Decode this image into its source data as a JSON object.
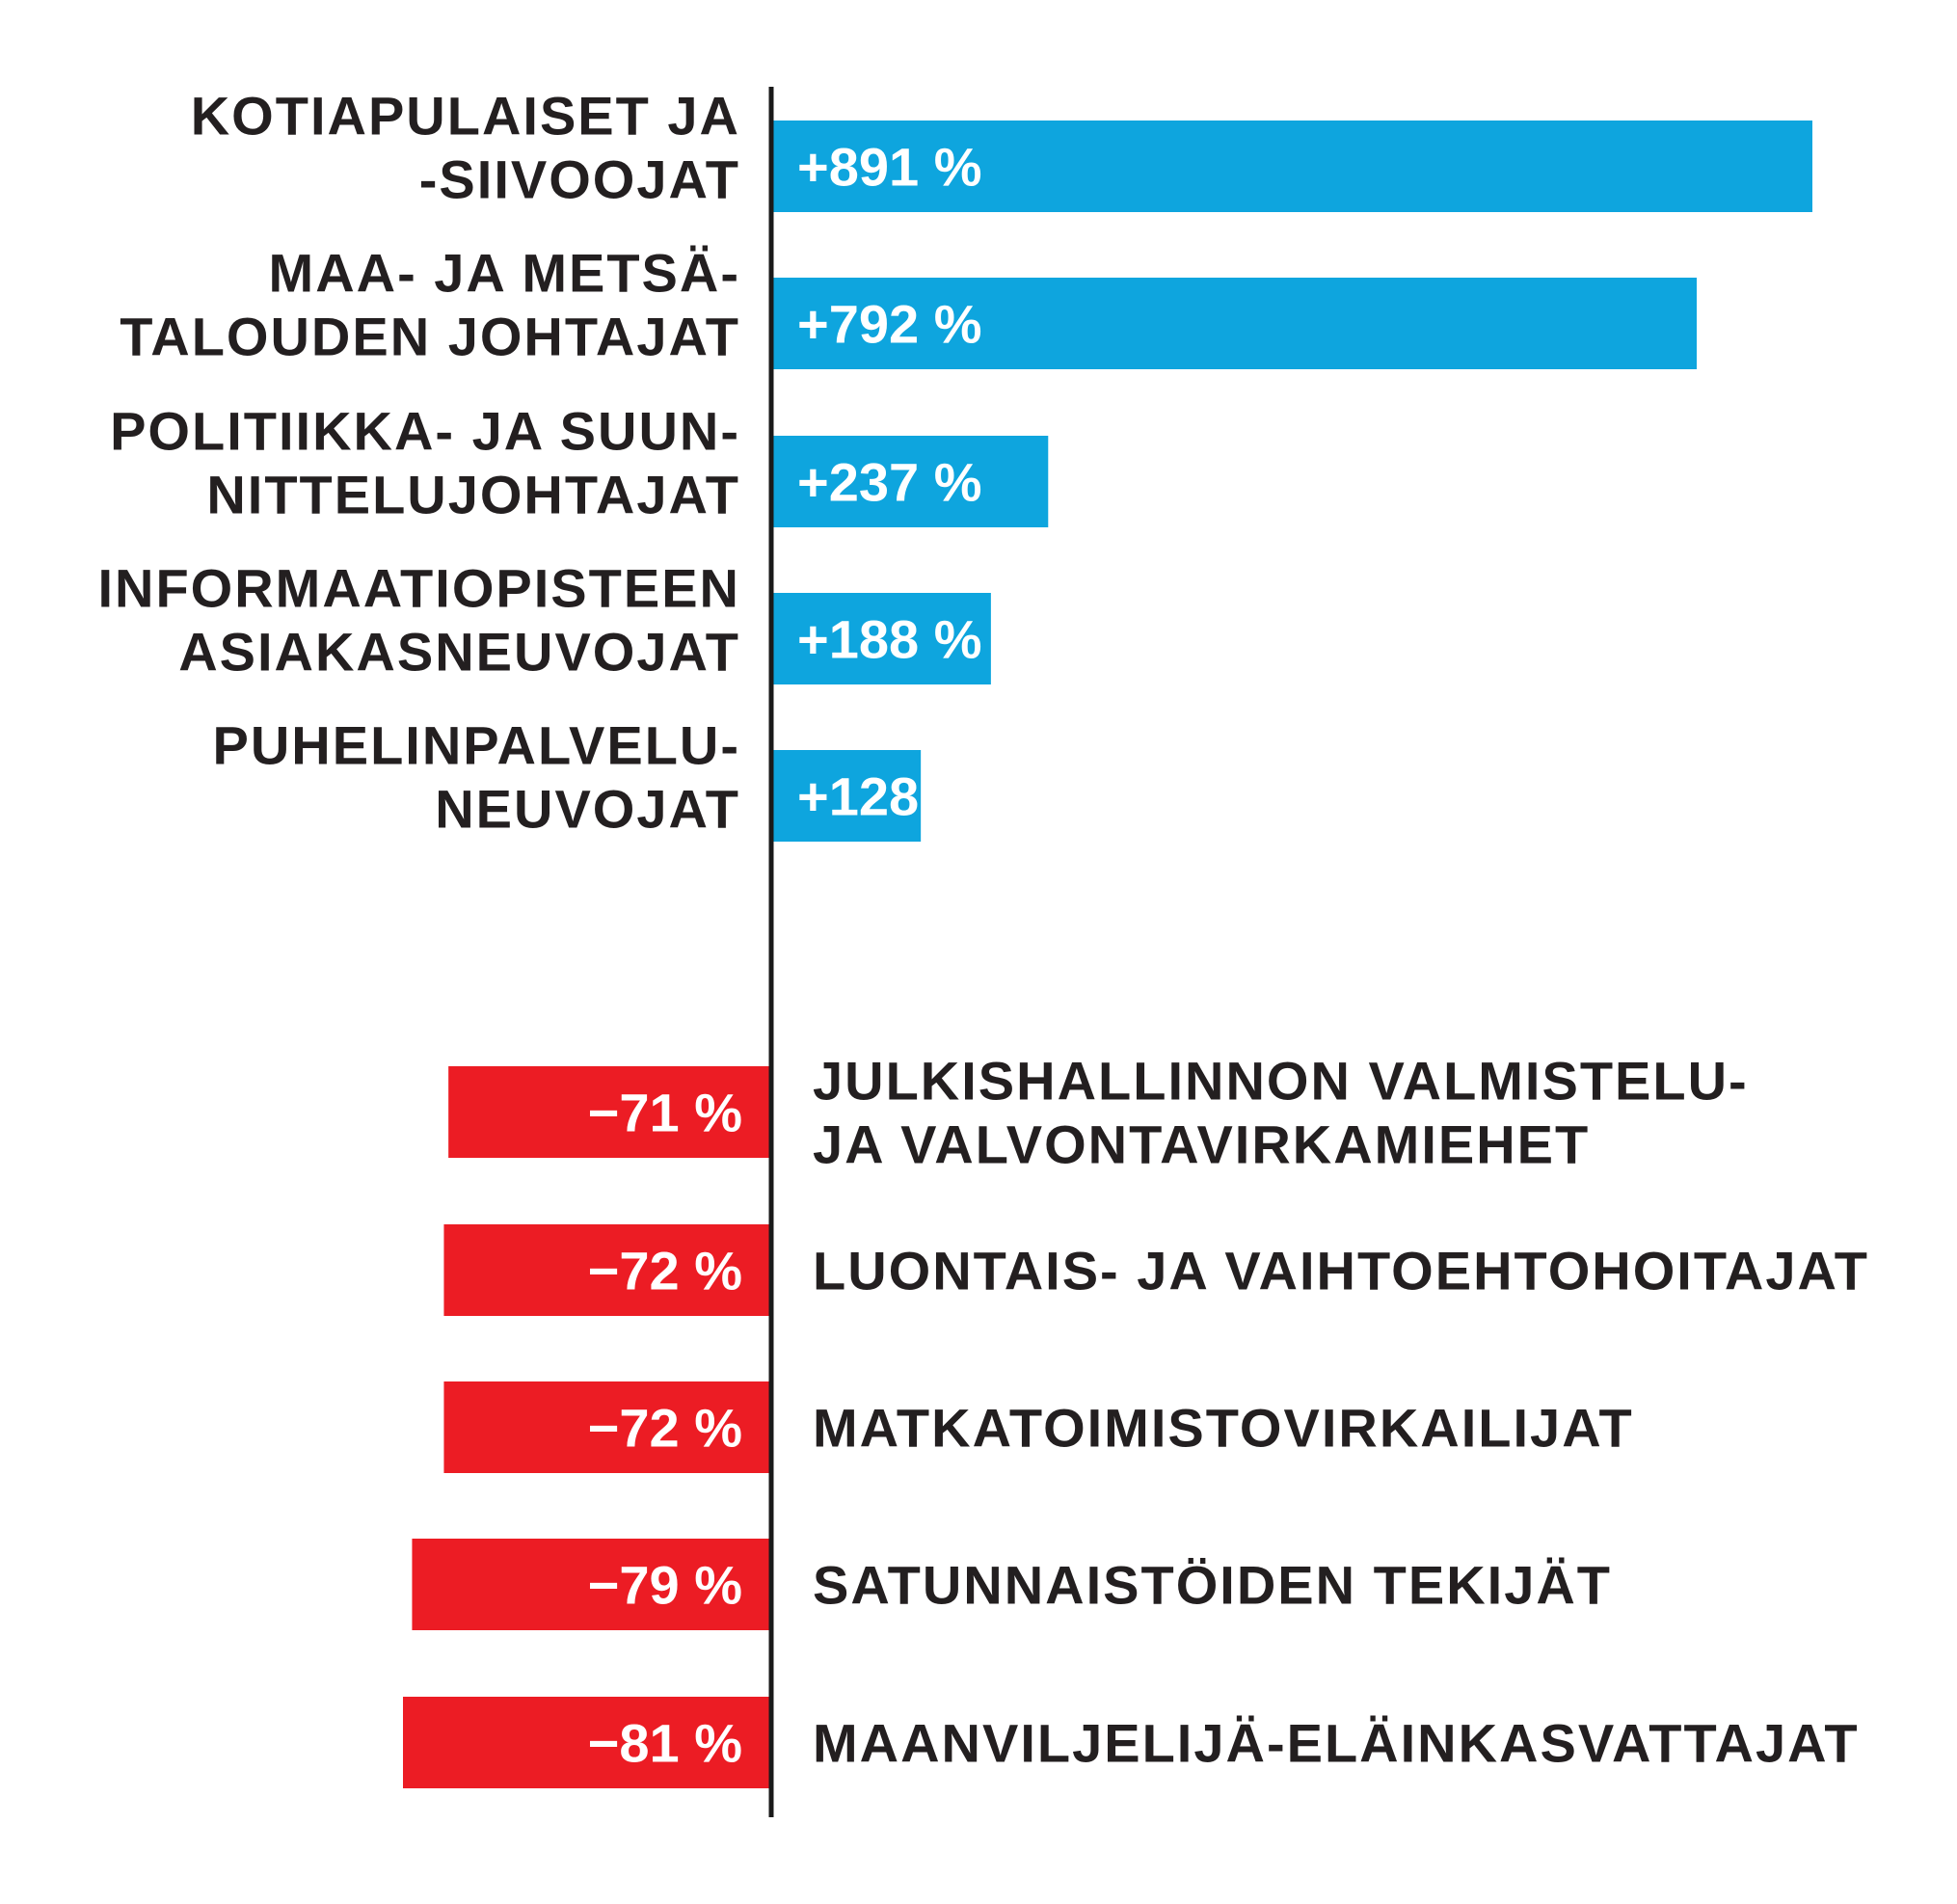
{
  "chart_data": {
    "type": "bar",
    "orientation": "horizontal",
    "colors": {
      "positive": "#0ea5de",
      "negative": "#ec1c24",
      "axis": "#1a1a1a",
      "label_text": "#231f20",
      "value_text": "#ffffff"
    },
    "increases": [
      {
        "label_lines": [
          "KOTIAPULAISET JA",
          "-SIIVOOJAT"
        ],
        "value": 891,
        "value_label": "+891 %"
      },
      {
        "label_lines": [
          "MAA- JA METSÄ-",
          "TALOUDEN JOHTAJAT"
        ],
        "value": 792,
        "value_label": "+792 %"
      },
      {
        "label_lines": [
          "POLITIIKKA- JA SUUN-",
          "NITTELUJOHTAJAT"
        ],
        "value": 237,
        "value_label": "+237 %"
      },
      {
        "label_lines": [
          "INFORMAATIOPISTEEN",
          "ASIAKASNEUVOJAT"
        ],
        "value": 188,
        "value_label": "+188 %"
      },
      {
        "label_lines": [
          "PUHELINPALVELU-",
          "NEUVOJAT"
        ],
        "value": 128,
        "value_label": "+128 %"
      }
    ],
    "decreases": [
      {
        "label_lines": [
          "JULKISHALLINNON VALMISTELU-",
          "JA VALVONTAVIRKAMIEHET"
        ],
        "value": -71,
        "value_label": "−71 %"
      },
      {
        "label_lines": [
          "LUONTAIS- JA VAIHTOEHTOHOITAJAT"
        ],
        "value": -72,
        "value_label": "−72 %"
      },
      {
        "label_lines": [
          "MATKATOIMISTOVIRKAILIJAT"
        ],
        "value": -72,
        "value_label": "−72 %"
      },
      {
        "label_lines": [
          "SATUNNAISTÖIDEN TEKIJÄT"
        ],
        "value": -79,
        "value_label": "−79 %"
      },
      {
        "label_lines": [
          "MAANVILJELIJÄ-ELÄINKASVATTAJAT"
        ],
        "value": -81,
        "value_label": "−81 %"
      }
    ]
  }
}
